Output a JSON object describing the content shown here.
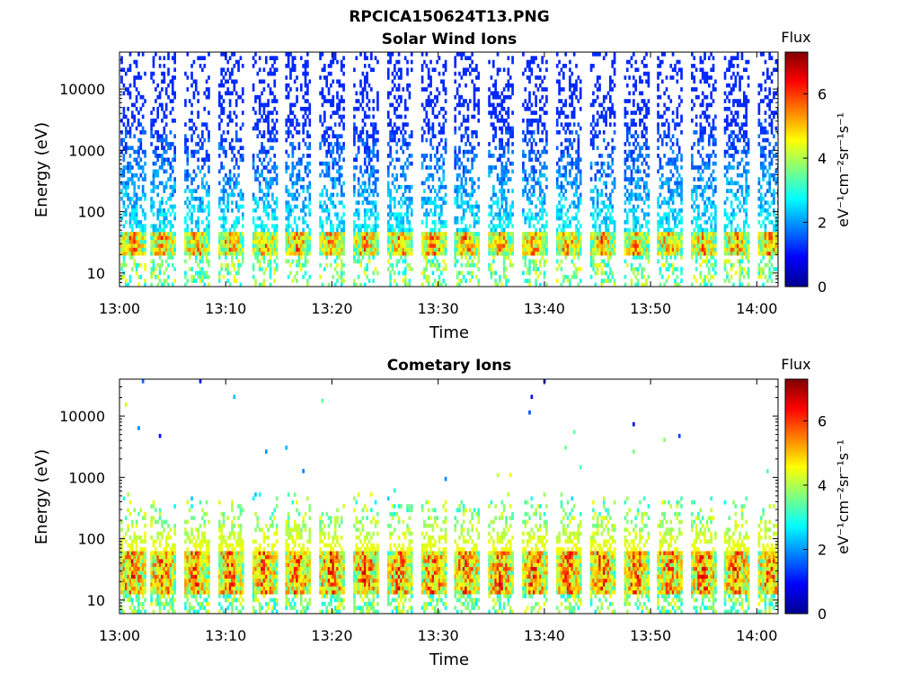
{
  "figure_title": "RPCICA150624T13.PNG",
  "chart_data": [
    {
      "type": "heatmap",
      "title": "Solar Wind Ions",
      "xlabel": "Time",
      "ylabel": "Energy (eV)",
      "x_ticks": [
        "13:00",
        "13:10",
        "13:20",
        "13:30",
        "13:40",
        "13:50",
        "14:00"
      ],
      "y_ticks": [
        "10",
        "100",
        "1000",
        "10000"
      ],
      "y_scale": "log",
      "ylim": [
        6,
        40000
      ],
      "xlim": [
        "13:00",
        "14:02"
      ],
      "colorbar": {
        "title": "Flux",
        "label": "eV⁻¹cm⁻²sr⁻¹s⁻¹",
        "ticks": [
          "0",
          "2",
          "4",
          "6"
        ],
        "range": [
          0,
          7.3
        ],
        "colormap": "jet"
      },
      "pattern": {
        "sweep_period_min": 3.2,
        "sweep_starts_min": [
          0.1,
          2.9,
          6.1,
          9.3,
          12.5,
          15.6,
          18.8,
          22.0,
          25.2,
          28.4,
          31.5,
          34.7,
          37.9,
          41.1,
          44.3,
          47.5,
          50.6,
          53.8,
          56.9,
          60.1
        ],
        "core_energy_eV": [
          20,
          45
        ],
        "core_peak_flux": 6.5,
        "high_energy_sparse_flux": 1.2
      }
    },
    {
      "type": "heatmap",
      "title": "Cometary Ions",
      "xlabel": "Time",
      "ylabel": "Energy (eV)",
      "x_ticks": [
        "13:00",
        "13:10",
        "13:20",
        "13:30",
        "13:40",
        "13:50",
        "14:00"
      ],
      "y_ticks": [
        "10",
        "100",
        "1000",
        "10000"
      ],
      "y_scale": "log",
      "ylim": [
        6,
        40000
      ],
      "xlim": [
        "13:00",
        "14:02"
      ],
      "colorbar": {
        "title": "Flux",
        "label": "eV⁻¹cm⁻²sr⁻¹s⁻¹",
        "ticks": [
          "0",
          "2",
          "4",
          "6"
        ],
        "range": [
          0,
          7.3
        ],
        "colormap": "jet"
      },
      "pattern": {
        "sweep_period_min": 3.2,
        "sweep_starts_min": [
          0.1,
          2.9,
          6.1,
          9.3,
          12.5,
          15.6,
          18.8,
          22.0,
          25.2,
          28.4,
          31.5,
          34.7,
          37.9,
          41.1,
          44.3,
          47.5,
          50.6,
          53.8,
          56.9,
          60.1
        ],
        "core_energy_eV": [
          12,
          60
        ],
        "core_peak_flux": 7.0,
        "high_energy_sparse_flux": 1.0
      }
    }
  ]
}
